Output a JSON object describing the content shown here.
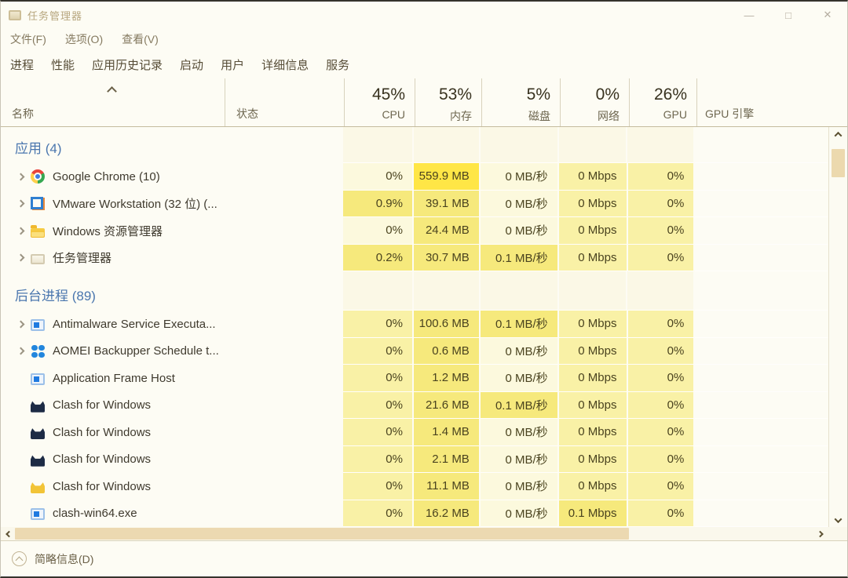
{
  "window": {
    "title": "任务管理器",
    "minimize": "—",
    "maximize": "□",
    "close": "✕"
  },
  "menu": {
    "items": [
      "文件(F)",
      "选项(O)",
      "查看(V)"
    ]
  },
  "tabs": {
    "selected": "进程",
    "items": [
      "进程",
      "性能",
      "应用历史记录",
      "启动",
      "用户",
      "详细信息",
      "服务"
    ]
  },
  "header": {
    "name_label": "名称",
    "status_label": "状态",
    "metrics": [
      {
        "value": "45%",
        "label": "CPU"
      },
      {
        "value": "53%",
        "label": "内存"
      },
      {
        "value": "5%",
        "label": "磁盘"
      },
      {
        "value": "0%",
        "label": "网络"
      },
      {
        "value": "26%",
        "label": "GPU"
      },
      {
        "value": "",
        "label": "GPU 引擎"
      }
    ]
  },
  "colors": {
    "heat_levels": [
      "transparent",
      "#fcf9dd",
      "#f9f1a6",
      "#f6e97c",
      "#ffe646"
    ],
    "group_band": "#fbf8e6",
    "section_title": "#4a76ae",
    "mem_highlight": "#ffe646"
  },
  "groups": [
    {
      "title": "应用 (4)",
      "rows": [
        {
          "name": "Google Chrome (10)",
          "icon": "chrome-icon",
          "expandable": true,
          "cells": [
            {
              "t": "0%",
              "h": 1
            },
            {
              "t": "559.9 MB",
              "h": 4
            },
            {
              "t": "0 MB/秒",
              "h": 1
            },
            {
              "t": "0 Mbps",
              "h": 2
            },
            {
              "t": "0%",
              "h": 2
            },
            {
              "t": "",
              "h": 0
            }
          ]
        },
        {
          "name": "VMware Workstation (32 位) (...",
          "icon": "vmware-icon",
          "expandable": true,
          "cells": [
            {
              "t": "0.9%",
              "h": 3
            },
            {
              "t": "39.1 MB",
              "h": 3
            },
            {
              "t": "0 MB/秒",
              "h": 1
            },
            {
              "t": "0 Mbps",
              "h": 2
            },
            {
              "t": "0%",
              "h": 2
            },
            {
              "t": "",
              "h": 0
            }
          ]
        },
        {
          "name": "Windows 资源管理器",
          "icon": "explorer-icon",
          "expandable": true,
          "cells": [
            {
              "t": "0%",
              "h": 1
            },
            {
              "t": "24.4 MB",
              "h": 3
            },
            {
              "t": "0 MB/秒",
              "h": 1
            },
            {
              "t": "0 Mbps",
              "h": 2
            },
            {
              "t": "0%",
              "h": 2
            },
            {
              "t": "",
              "h": 0
            }
          ]
        },
        {
          "name": "任务管理器",
          "icon": "taskmgr-icon",
          "expandable": true,
          "cells": [
            {
              "t": "0.2%",
              "h": 3
            },
            {
              "t": "30.7 MB",
              "h": 3
            },
            {
              "t": "0.1 MB/秒",
              "h": 3
            },
            {
              "t": "0 Mbps",
              "h": 2
            },
            {
              "t": "0%",
              "h": 2
            },
            {
              "t": "",
              "h": 0
            }
          ]
        }
      ]
    },
    {
      "title": "后台进程 (89)",
      "rows": [
        {
          "name": "Antimalware Service Executa...",
          "icon": "window-icon",
          "expandable": true,
          "cells": [
            {
              "t": "0%",
              "h": 2
            },
            {
              "t": "100.6 MB",
              "h": 3
            },
            {
              "t": "0.1 MB/秒",
              "h": 3
            },
            {
              "t": "0 Mbps",
              "h": 2
            },
            {
              "t": "0%",
              "h": 2
            },
            {
              "t": "",
              "h": 0
            }
          ]
        },
        {
          "name": "AOMEI Backupper Schedule t...",
          "icon": "aomei-icon",
          "expandable": true,
          "cells": [
            {
              "t": "0%",
              "h": 2
            },
            {
              "t": "0.6 MB",
              "h": 3
            },
            {
              "t": "0 MB/秒",
              "h": 1
            },
            {
              "t": "0 Mbps",
              "h": 2
            },
            {
              "t": "0%",
              "h": 2
            },
            {
              "t": "",
              "h": 0
            }
          ]
        },
        {
          "name": "Application Frame Host",
          "icon": "window-icon",
          "expandable": false,
          "cells": [
            {
              "t": "0%",
              "h": 2
            },
            {
              "t": "1.2 MB",
              "h": 3
            },
            {
              "t": "0 MB/秒",
              "h": 1
            },
            {
              "t": "0 Mbps",
              "h": 2
            },
            {
              "t": "0%",
              "h": 2
            },
            {
              "t": "",
              "h": 0
            }
          ]
        },
        {
          "name": "Clash for Windows",
          "icon": "clash-dark-icon",
          "expandable": false,
          "cells": [
            {
              "t": "0%",
              "h": 2
            },
            {
              "t": "21.6 MB",
              "h": 3
            },
            {
              "t": "0.1 MB/秒",
              "h": 3
            },
            {
              "t": "0 Mbps",
              "h": 2
            },
            {
              "t": "0%",
              "h": 2
            },
            {
              "t": "",
              "h": 0
            }
          ]
        },
        {
          "name": "Clash for Windows",
          "icon": "clash-dark-icon",
          "expandable": false,
          "cells": [
            {
              "t": "0%",
              "h": 2
            },
            {
              "t": "1.4 MB",
              "h": 3
            },
            {
              "t": "0 MB/秒",
              "h": 1
            },
            {
              "t": "0 Mbps",
              "h": 2
            },
            {
              "t": "0%",
              "h": 2
            },
            {
              "t": "",
              "h": 0
            }
          ]
        },
        {
          "name": "Clash for Windows",
          "icon": "clash-dark-icon",
          "expandable": false,
          "cells": [
            {
              "t": "0%",
              "h": 2
            },
            {
              "t": "2.1 MB",
              "h": 3
            },
            {
              "t": "0 MB/秒",
              "h": 1
            },
            {
              "t": "0 Mbps",
              "h": 2
            },
            {
              "t": "0%",
              "h": 2
            },
            {
              "t": "",
              "h": 0
            }
          ]
        },
        {
          "name": "Clash for Windows",
          "icon": "clash-yellow-icon",
          "expandable": false,
          "cells": [
            {
              "t": "0%",
              "h": 2
            },
            {
              "t": "11.1 MB",
              "h": 3
            },
            {
              "t": "0 MB/秒",
              "h": 1
            },
            {
              "t": "0 Mbps",
              "h": 2
            },
            {
              "t": "0%",
              "h": 2
            },
            {
              "t": "",
              "h": 0
            }
          ]
        },
        {
          "name": "clash-win64.exe",
          "icon": "window-icon",
          "expandable": false,
          "cells": [
            {
              "t": "0%",
              "h": 2
            },
            {
              "t": "16.2 MB",
              "h": 3
            },
            {
              "t": "0 MB/秒",
              "h": 1
            },
            {
              "t": "0.1 Mbps",
              "h": 3
            },
            {
              "t": "0%",
              "h": 2
            },
            {
              "t": "",
              "h": 0
            }
          ]
        }
      ]
    }
  ],
  "footer": {
    "toggle_label": "简略信息(D)"
  }
}
